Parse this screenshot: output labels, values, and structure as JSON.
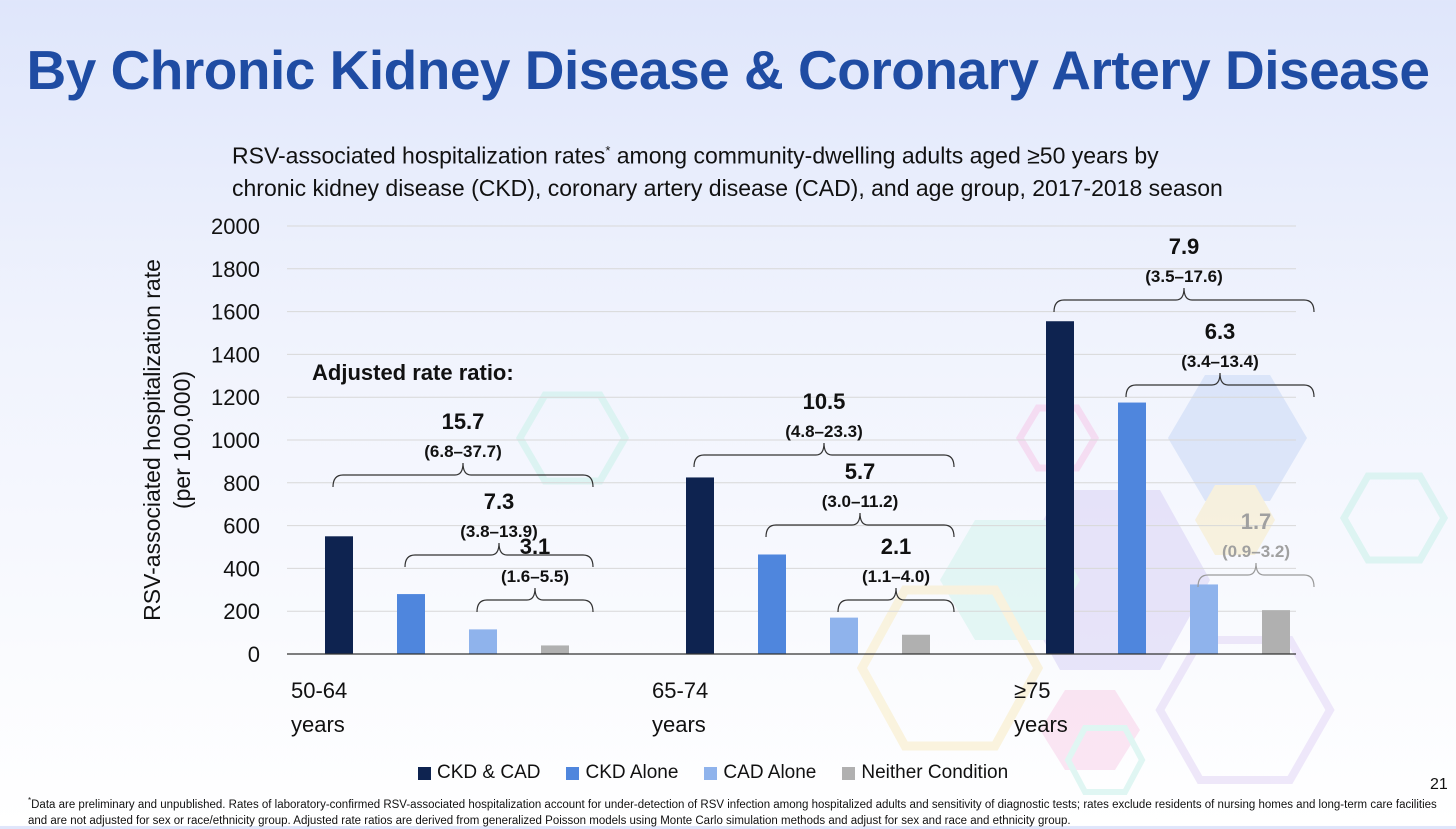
{
  "slide": {
    "title": "By Chronic Kidney Disease & Coronary Artery Disease",
    "subtitle_main": "RSV-associated hospitalization rates",
    "subtitle_mark": "*",
    "subtitle_line1_rest": " among community-dwelling adults aged ≥50 years by",
    "subtitle_line2": "chronic kidney disease (CKD), coronary artery disease (CAD), and age group, 2017-2018 season",
    "page_number": "21",
    "footnote_mark": "*",
    "footnote_text": "Data are preliminary and unpublished. Rates of laboratory-confirmed RSV-associated hospitalization account for under-detection of RSV infection among hospitalized adults and sensitivity of diagnostic tests; rates exclude residents of nursing homes and long-term care facilities and are not adjusted for sex or race/ethnicity group. Adjusted rate ratios are derived from generalized Poisson models using Monte Carlo simulation methods and adjust for sex and race and ethnicity group."
  },
  "chart_data": {
    "type": "bar",
    "ylabel_line1": "RSV-associated hospitalization rate",
    "ylabel_line2": "(per 100,000)",
    "ylim": [
      0,
      2000
    ],
    "yticks": [
      "0",
      "200",
      "400",
      "600",
      "800",
      "1000",
      "1200",
      "1400",
      "1600",
      "1800",
      "2000"
    ],
    "grid": true,
    "legend_position": "bottom",
    "categories": [
      {
        "line1": "50-64",
        "line2": "years"
      },
      {
        "line1": "65-74",
        "line2": "years"
      },
      {
        "line1": "≥75",
        "line2": "years"
      }
    ],
    "series": [
      {
        "name": "CKD & CAD",
        "color": "#0e2350",
        "values": [
          550,
          825,
          1555
        ]
      },
      {
        "name": "CKD Alone",
        "color": "#4f86dd",
        "values": [
          280,
          465,
          1175
        ]
      },
      {
        "name": "CAD Alone",
        "color": "#8fb3ec",
        "values": [
          115,
          170,
          325
        ]
      },
      {
        "name": "Neither Condition",
        "color": "#b0b0b0",
        "values": [
          40,
          90,
          205
        ]
      }
    ],
    "rate_ratio_heading": "Adjusted rate ratio:",
    "rate_ratios": [
      {
        "group": 0,
        "series": 0,
        "value": "15.7",
        "ci": "(6.8–37.7)"
      },
      {
        "group": 0,
        "series": 1,
        "value": "7.3",
        "ci": "(3.8–13.9)"
      },
      {
        "group": 0,
        "series": 2,
        "value": "3.1",
        "ci": "(1.6–5.5)"
      },
      {
        "group": 1,
        "series": 0,
        "value": "10.5",
        "ci": "(4.8–23.3)"
      },
      {
        "group": 1,
        "series": 1,
        "value": "5.7",
        "ci": "(3.0–11.2)"
      },
      {
        "group": 1,
        "series": 2,
        "value": "2.1",
        "ci": "(1.1–4.0)"
      },
      {
        "group": 2,
        "series": 0,
        "value": "7.9",
        "ci": "(3.5–17.6)"
      },
      {
        "group": 2,
        "series": 1,
        "value": "6.3",
        "ci": "(3.4–13.4)"
      },
      {
        "group": 2,
        "series": 2,
        "value": "1.7",
        "ci": "(0.9–3.2)",
        "muted": true
      }
    ]
  }
}
